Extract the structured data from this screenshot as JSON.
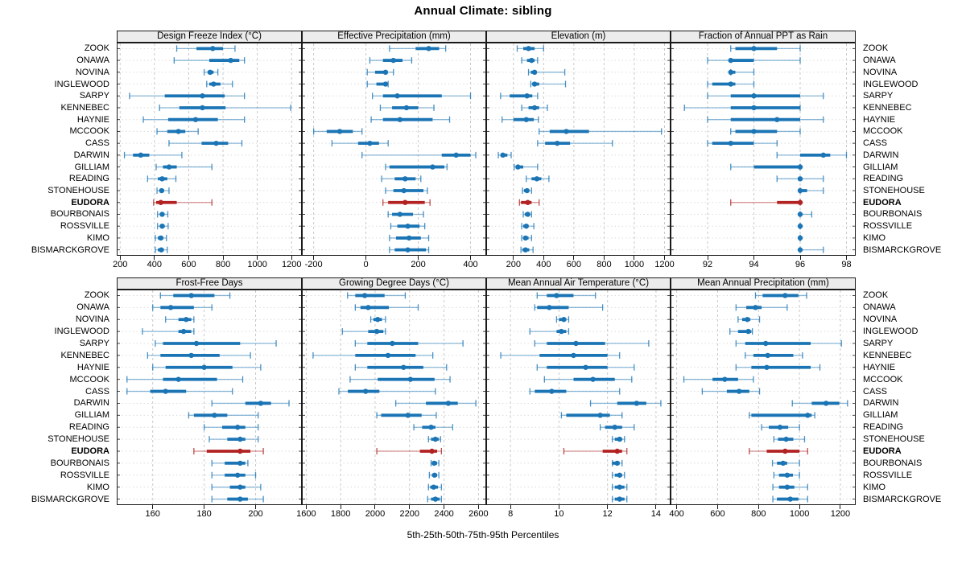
{
  "title": "Annual Climate: sibling",
  "footer": "5th-25th-50th-75th-95th Percentiles",
  "highlight_site": "EUDORA",
  "percentile_labels": [
    "5th",
    "25th",
    "50th",
    "75th",
    "95th"
  ],
  "sites": [
    "ZOOK",
    "ONAWA",
    "NOVINA",
    "INGLEWOOD",
    "SARPY",
    "KENNEBEC",
    "HAYNIE",
    "MCCOOK",
    "CASS",
    "DARWIN",
    "GILLIAM",
    "READING",
    "STONEHOUSE",
    "EUDORA",
    "BOURBONAIS",
    "ROSSVILLE",
    "KIMO",
    "BISMARCKGROVE"
  ],
  "colors": {
    "blue": "#1b75b5",
    "red": "#b22222",
    "grid": "#c9c9c9",
    "row_grid": "#dcdcdc",
    "border": "#1a1a1a",
    "strip_bg": "#ececec",
    "text": "#000000"
  },
  "chart_data": [
    {
      "type": "dotplot-percentiles",
      "title": "Design Freeze Index (°C)",
      "xlim": [
        180,
        1260
      ],
      "ticks": [
        200,
        400,
        600,
        800,
        1000,
        1200
      ],
      "values": [
        [
          530,
          645,
          740,
          800,
          870
        ],
        [
          515,
          720,
          845,
          895,
          925
        ],
        [
          690,
          710,
          725,
          745,
          770
        ],
        [
          705,
          720,
          745,
          785,
          855
        ],
        [
          255,
          460,
          680,
          810,
          925
        ],
        [
          430,
          545,
          680,
          815,
          1195
        ],
        [
          335,
          480,
          640,
          770,
          925
        ],
        [
          415,
          475,
          540,
          580,
          655
        ],
        [
          485,
          675,
          760,
          830,
          910
        ],
        [
          225,
          275,
          320,
          370,
          560
        ],
        [
          410,
          450,
          485,
          530,
          735
        ],
        [
          360,
          420,
          445,
          475,
          525
        ],
        [
          415,
          430,
          442,
          456,
          485
        ],
        [
          395,
          410,
          437,
          530,
          735
        ],
        [
          418,
          432,
          445,
          458,
          478
        ],
        [
          418,
          432,
          445,
          460,
          480
        ],
        [
          405,
          420,
          437,
          452,
          470
        ],
        [
          405,
          420,
          440,
          455,
          475
        ]
      ]
    },
    {
      "type": "dotplot-percentiles",
      "title": "Effective Precipitation (mm)",
      "xlim": [
        -245,
        460
      ],
      "ticks": [
        -200,
        0,
        200,
        400
      ],
      "values": [
        [
          90,
          190,
          240,
          280,
          305
        ],
        [
          15,
          65,
          105,
          140,
          175
        ],
        [
          5,
          35,
          75,
          82,
          105
        ],
        [
          5,
          40,
          75,
          78,
          85
        ],
        [
          25,
          65,
          120,
          290,
          400
        ],
        [
          55,
          100,
          155,
          200,
          260
        ],
        [
          20,
          65,
          130,
          255,
          320
        ],
        [
          -200,
          -150,
          -100,
          -50,
          -15
        ],
        [
          -130,
          -30,
          15,
          50,
          85
        ],
        [
          -15,
          290,
          345,
          400,
          420
        ],
        [
          75,
          90,
          255,
          300,
          310
        ],
        [
          60,
          110,
          150,
          190,
          210
        ],
        [
          75,
          105,
          145,
          220,
          235
        ],
        [
          65,
          85,
          150,
          225,
          245
        ],
        [
          85,
          100,
          130,
          180,
          220
        ],
        [
          95,
          120,
          160,
          205,
          225
        ],
        [
          90,
          115,
          165,
          210,
          240
        ],
        [
          90,
          110,
          160,
          230,
          240
        ]
      ]
    },
    {
      "type": "dotplot-percentiles",
      "title": "Elevation (m)",
      "xlim": [
        20,
        1240
      ],
      "ticks": [
        200,
        400,
        600,
        800,
        1000,
        1200
      ],
      "values": [
        [
          225,
          265,
          300,
          340,
          400
        ],
        [
          255,
          290,
          320,
          340,
          360
        ],
        [
          300,
          315,
          340,
          350,
          540
        ],
        [
          315,
          325,
          340,
          370,
          545
        ],
        [
          115,
          175,
          290,
          325,
          360
        ],
        [
          255,
          300,
          340,
          370,
          425
        ],
        [
          125,
          200,
          285,
          335,
          365
        ],
        [
          370,
          440,
          550,
          700,
          1180
        ],
        [
          360,
          410,
          490,
          575,
          855
        ],
        [
          100,
          115,
          130,
          160,
          185
        ],
        [
          205,
          215,
          230,
          265,
          360
        ],
        [
          285,
          320,
          355,
          385,
          435
        ],
        [
          260,
          270,
          290,
          305,
          320
        ],
        [
          240,
          250,
          295,
          320,
          370
        ],
        [
          265,
          275,
          295,
          310,
          320
        ],
        [
          255,
          265,
          285,
          300,
          335
        ],
        [
          255,
          265,
          280,
          300,
          320
        ],
        [
          250,
          260,
          280,
          305,
          330
        ]
      ]
    },
    {
      "type": "dotplot-percentiles",
      "title": "Fraction of Annual PPT as Rain",
      "xlim": [
        90.4,
        98.4
      ],
      "ticks": [
        92,
        94,
        96,
        98
      ],
      "values": [
        [
          93,
          93.2,
          94,
          95,
          96
        ],
        [
          92,
          93,
          93,
          94,
          96
        ],
        [
          93,
          93,
          93,
          93.2,
          94
        ],
        [
          92,
          92.2,
          93,
          93.2,
          94
        ],
        [
          92,
          93,
          94,
          96,
          97
        ],
        [
          91,
          93,
          94,
          96,
          96
        ],
        [
          92,
          93,
          95,
          96,
          97
        ],
        [
          93,
          93.2,
          94,
          95,
          96
        ],
        [
          92,
          92.2,
          93,
          94,
          95
        ],
        [
          95,
          96,
          97,
          97.3,
          98
        ],
        [
          93,
          94,
          96,
          96,
          96
        ],
        [
          95,
          96,
          96,
          96,
          97
        ],
        [
          96,
          96,
          96,
          96.3,
          97
        ],
        [
          93,
          95,
          96,
          96,
          96
        ],
        [
          96,
          96,
          96,
          96,
          96.5
        ],
        [
          96,
          96,
          96,
          96,
          96
        ],
        [
          96,
          96,
          96,
          96,
          96
        ],
        [
          96,
          96,
          96,
          96,
          97
        ]
      ]
    },
    {
      "type": "dotplot-percentiles",
      "title": "Frost-Free Days",
      "xlim": [
        146,
        218
      ],
      "ticks": [
        160,
        180,
        200
      ],
      "values": [
        [
          163,
          168,
          175,
          184,
          190
        ],
        [
          160,
          163,
          167,
          176,
          183
        ],
        [
          165,
          170,
          173,
          175,
          176
        ],
        [
          156,
          170,
          172,
          175,
          176
        ],
        [
          161,
          164,
          177,
          194,
          208
        ],
        [
          158,
          163,
          175,
          186,
          198
        ],
        [
          160,
          165,
          180,
          191,
          202
        ],
        [
          150,
          164,
          170,
          185,
          195
        ],
        [
          150,
          159,
          165,
          173,
          191
        ],
        [
          183,
          196,
          202,
          206,
          213
        ],
        [
          174,
          176,
          184,
          189,
          201
        ],
        [
          180,
          187,
          193,
          196,
          201
        ],
        [
          182,
          189,
          194,
          196,
          201
        ],
        [
          176,
          181,
          194,
          198,
          203
        ],
        [
          183,
          188,
          194,
          196,
          197
        ],
        [
          183,
          188,
          193,
          196,
          200
        ],
        [
          183,
          190,
          194,
          196,
          202
        ],
        [
          183,
          189,
          194,
          197,
          203
        ]
      ]
    },
    {
      "type": "dotplot-percentiles",
      "title": "Growing Degree Days (°C)",
      "xlim": [
        1575,
        2645
      ],
      "ticks": [
        1600,
        1800,
        2000,
        2200,
        2400,
        2600
      ],
      "values": [
        [
          1840,
          1885,
          1940,
          2055,
          2175
        ],
        [
          1885,
          1915,
          1960,
          2080,
          2250
        ],
        [
          1975,
          1990,
          2015,
          2040,
          2060
        ],
        [
          1810,
          1960,
          2010,
          2048,
          2060
        ],
        [
          1885,
          1955,
          2100,
          2250,
          2510
        ],
        [
          1640,
          1885,
          2075,
          2235,
          2335
        ],
        [
          1885,
          1955,
          2165,
          2280,
          2415
        ],
        [
          1855,
          2015,
          2205,
          2345,
          2435
        ],
        [
          1790,
          1842,
          1945,
          2025,
          2350
        ],
        [
          2120,
          2295,
          2425,
          2480,
          2585
        ],
        [
          2010,
          2035,
          2190,
          2270,
          2355
        ],
        [
          2225,
          2273,
          2325,
          2350,
          2450
        ],
        [
          2310,
          2325,
          2350,
          2370,
          2380
        ],
        [
          2010,
          2260,
          2330,
          2360,
          2385
        ],
        [
          2325,
          2330,
          2343,
          2360,
          2370
        ],
        [
          2315,
          2330,
          2345,
          2360,
          2370
        ],
        [
          2310,
          2320,
          2340,
          2365,
          2385
        ],
        [
          2305,
          2325,
          2350,
          2375,
          2385
        ]
      ]
    },
    {
      "type": "dotplot-percentiles",
      "title": "Mean Annual Air Temperature (°C)",
      "xlim": [
        7.0,
        14.6
      ],
      "ticks": [
        8,
        10,
        12,
        14
      ],
      "values": [
        [
          9.1,
          9.5,
          9.9,
          10.6,
          11.5
        ],
        [
          9.0,
          9.1,
          9.6,
          10.4,
          11.8
        ],
        [
          9.9,
          10.0,
          10.2,
          10.3,
          10.4
        ],
        [
          8.8,
          9.9,
          10.1,
          10.3,
          10.4
        ],
        [
          9.0,
          9.5,
          10.7,
          11.9,
          13.7
        ],
        [
          7.6,
          9.2,
          10.6,
          12.0,
          12.5
        ],
        [
          9.1,
          9.5,
          11.1,
          12.0,
          13.1
        ],
        [
          9.4,
          10.6,
          11.4,
          12.3,
          13.0
        ],
        [
          8.8,
          9.0,
          9.7,
          10.3,
          12.5
        ],
        [
          11.3,
          12.4,
          13.2,
          13.6,
          14.2
        ],
        [
          10.1,
          10.3,
          11.7,
          12.1,
          12.6
        ],
        [
          11.7,
          11.9,
          12.3,
          12.6,
          13.1
        ],
        [
          12.2,
          12.3,
          12.5,
          12.6,
          12.7
        ],
        [
          10.2,
          11.8,
          12.4,
          12.6,
          12.8
        ],
        [
          12.2,
          12.2,
          12.4,
          12.5,
          12.6
        ],
        [
          12.2,
          12.3,
          12.5,
          12.6,
          12.7
        ],
        [
          12.2,
          12.3,
          12.5,
          12.7,
          12.8
        ],
        [
          12.2,
          12.3,
          12.5,
          12.7,
          12.8
        ]
      ]
    },
    {
      "type": "dotplot-percentiles",
      "title": "Mean Annual Precipitation (mm)",
      "xlim": [
        370,
        1275
      ],
      "ticks": [
        400,
        600,
        800,
        1000,
        1200
      ],
      "values": [
        [
          785,
          820,
          930,
          995,
          1035
        ],
        [
          690,
          740,
          785,
          815,
          940
        ],
        [
          700,
          720,
          745,
          760,
          805
        ],
        [
          660,
          700,
          750,
          765,
          770
        ],
        [
          690,
          735,
          835,
          1055,
          1205
        ],
        [
          735,
          775,
          845,
          970,
          1015
        ],
        [
          690,
          765,
          840,
          1055,
          1100
        ],
        [
          435,
          575,
          635,
          700,
          775
        ],
        [
          525,
          645,
          705,
          755,
          805
        ],
        [
          965,
          1060,
          1130,
          1195,
          1235
        ],
        [
          755,
          765,
          1040,
          1060,
          1075
        ],
        [
          815,
          850,
          905,
          945,
          1000
        ],
        [
          875,
          895,
          935,
          970,
          1025
        ],
        [
          755,
          840,
          930,
          1000,
          1040
        ],
        [
          868,
          890,
          920,
          940,
          1000
        ],
        [
          875,
          900,
          940,
          968,
          1000
        ],
        [
          870,
          900,
          940,
          975,
          1040
        ],
        [
          870,
          890,
          955,
          995,
          1040
        ]
      ]
    }
  ]
}
